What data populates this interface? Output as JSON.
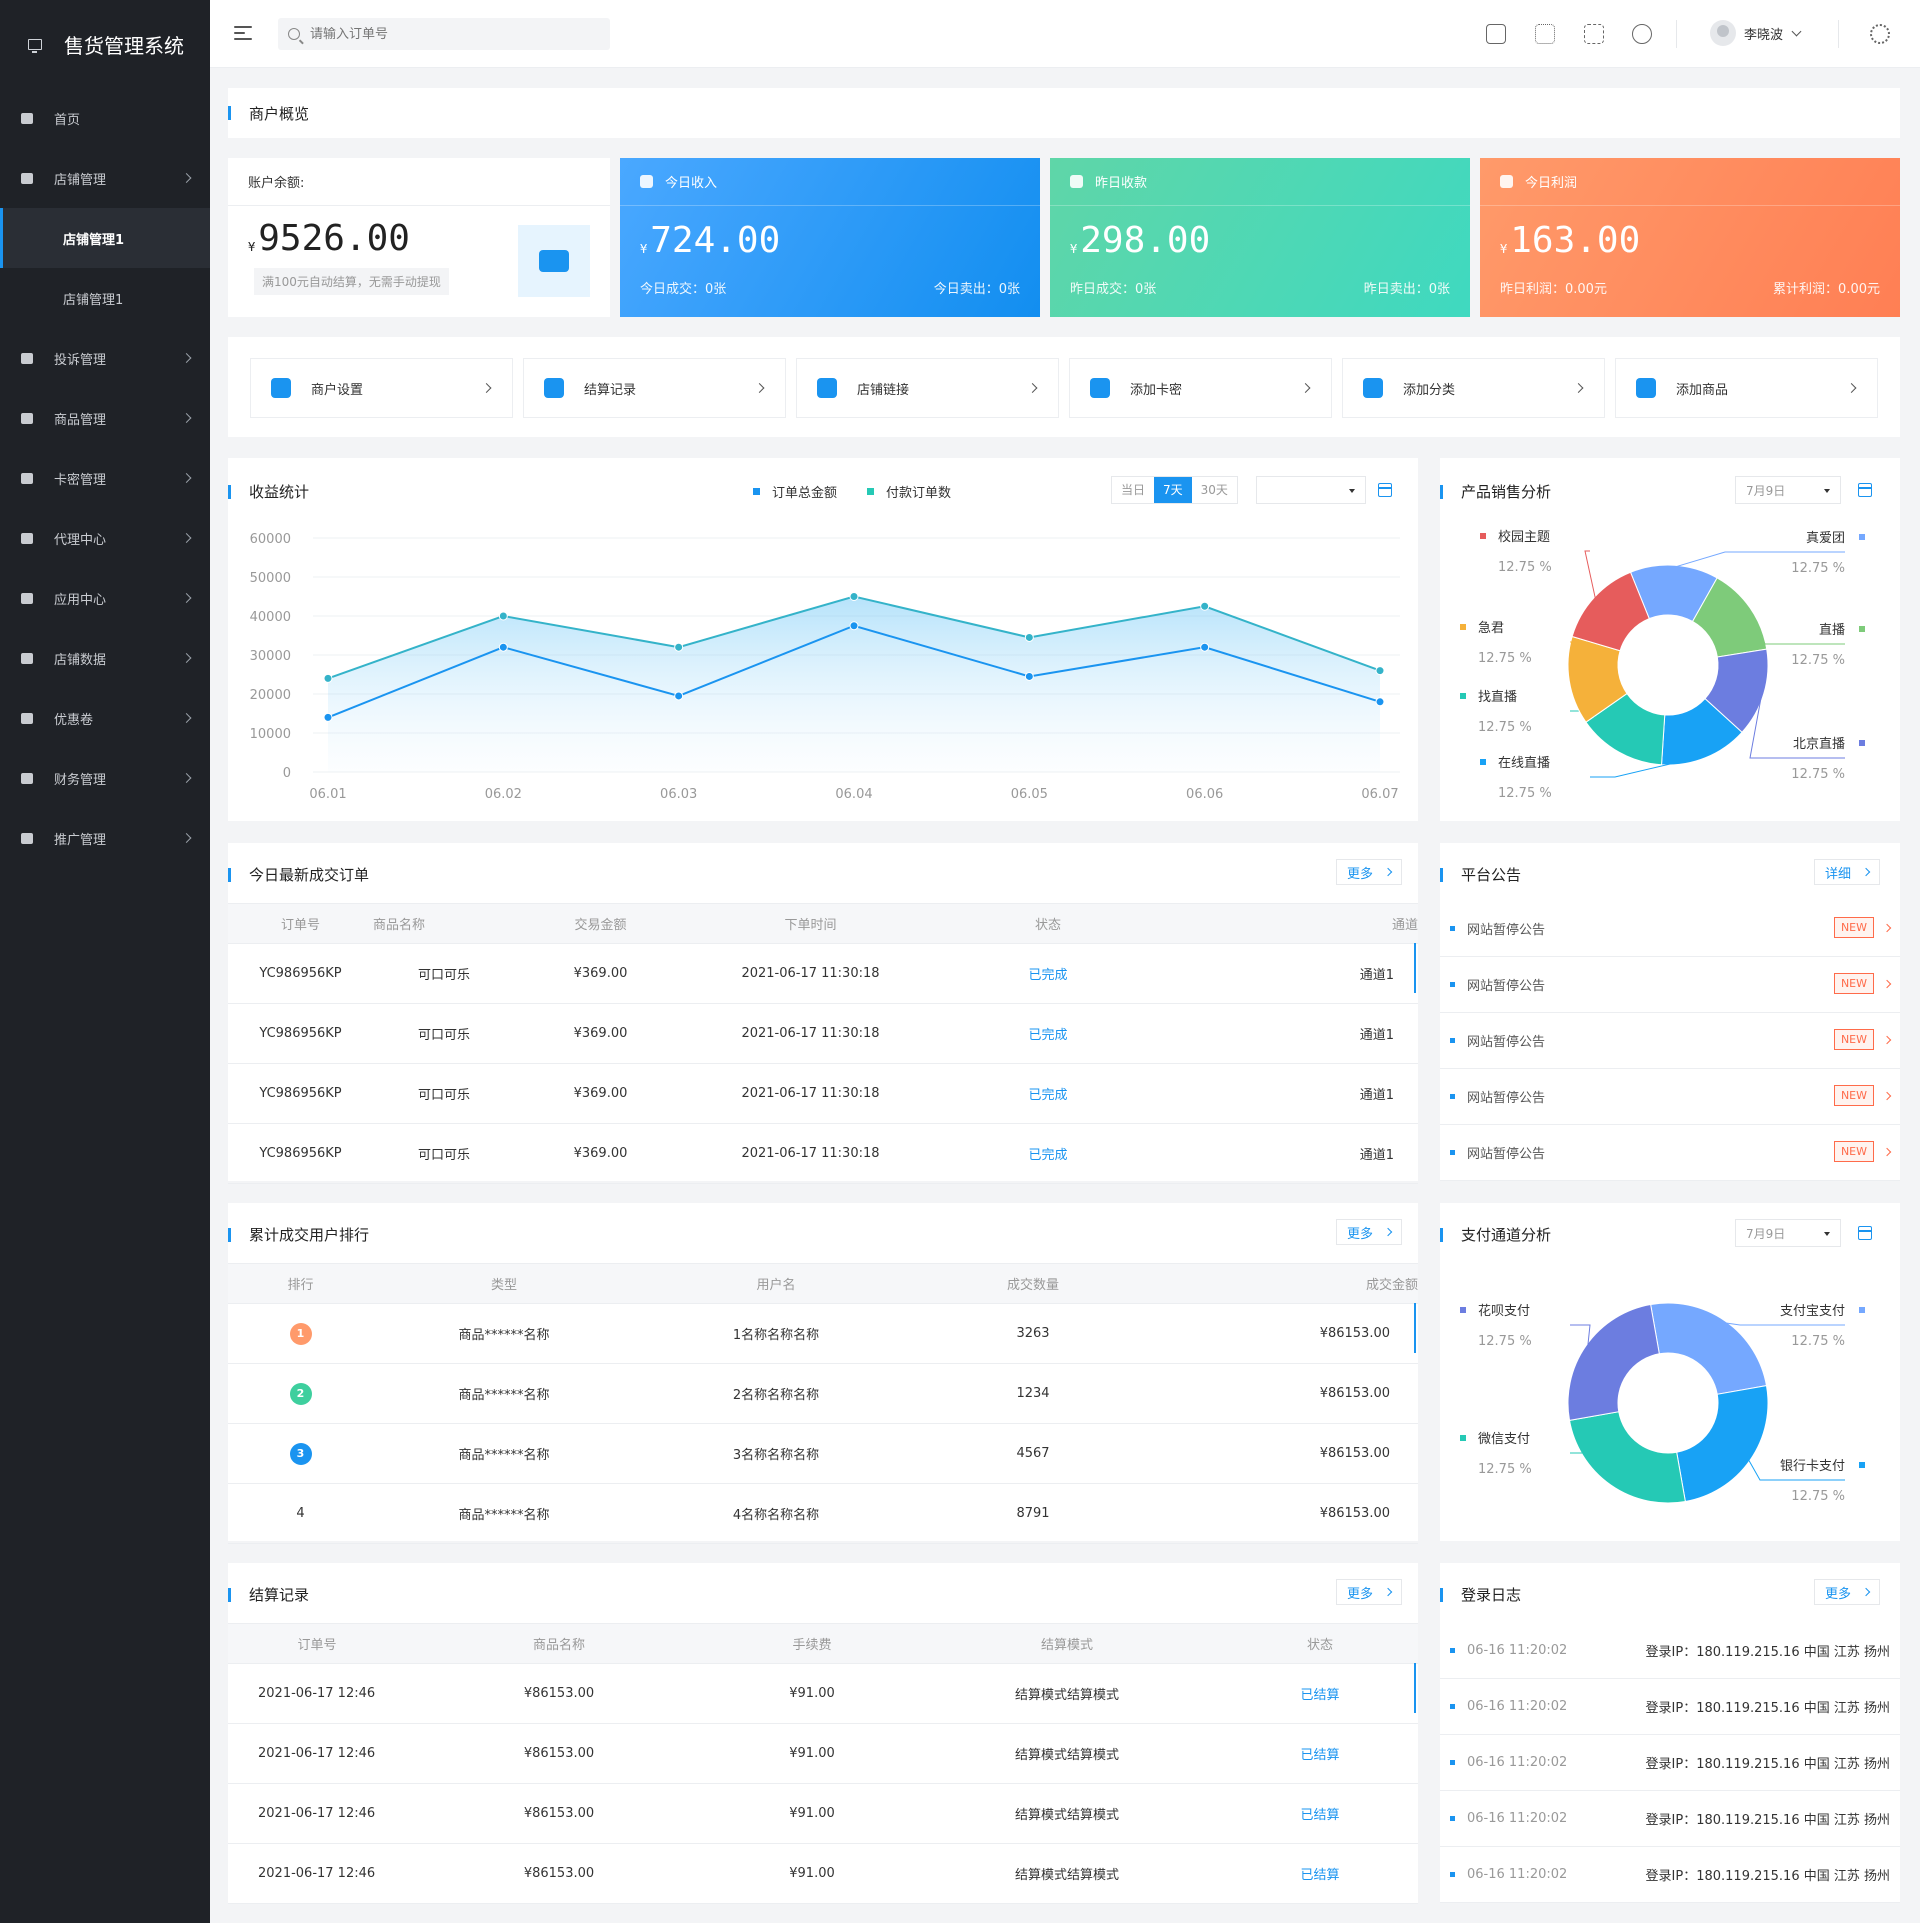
{
  "app": {
    "title": "售货管理系统"
  },
  "sidebar": {
    "items": [
      {
        "label": "首页",
        "icon": "home-icon",
        "has_arrow": false
      },
      {
        "label": "店铺管理",
        "icon": "store-icon",
        "has_arrow": true
      },
      {
        "label": "店铺管理1",
        "sub": true,
        "active": true
      },
      {
        "label": "店铺管理1",
        "sub": true,
        "active": false
      },
      {
        "label": "投诉管理",
        "icon": "chat-icon",
        "has_arrow": true
      },
      {
        "label": "商品管理",
        "icon": "bag-icon",
        "has_arrow": true
      },
      {
        "label": "卡密管理",
        "icon": "card-icon",
        "has_arrow": true
      },
      {
        "label": "代理中心",
        "icon": "user-icon",
        "has_arrow": true
      },
      {
        "label": "应用中心",
        "icon": "apps-icon",
        "has_arrow": true
      },
      {
        "label": "店铺数据",
        "icon": "doc-icon",
        "has_arrow": true
      },
      {
        "label": "优惠卷",
        "icon": "coupon-icon",
        "has_arrow": true
      },
      {
        "label": "财务管理",
        "icon": "wallet-icon",
        "has_arrow": true
      },
      {
        "label": "推广管理",
        "icon": "share-icon",
        "has_arrow": true
      }
    ]
  },
  "topbar": {
    "search_placeholder": "请输入订单号",
    "username": "李晓波"
  },
  "overview": {
    "title": "商户概览",
    "balance_label": "账户余额:",
    "balance_currency": "¥",
    "balance_value": "9526.00",
    "balance_note": "满100元自动结算，无需手动提现",
    "cards": [
      {
        "title": "今日收入",
        "currency": "¥",
        "value": "724.00",
        "left": "今日成交：0张",
        "right": "今日卖出：0张",
        "color": "#1a94f0"
      },
      {
        "title": "昨日收款",
        "currency": "¥",
        "value": "298.00",
        "left": "昨日成交：0张",
        "right": "昨日卖出：0张",
        "color": "#3ecf9e"
      },
      {
        "title": "今日利润",
        "currency": "¥",
        "value": "163.00",
        "left": "昨日利润：0.00元",
        "right": "累计利润：0.00元",
        "color": "#ff8a5c"
      }
    ]
  },
  "quick_actions": [
    {
      "label": "商户设置",
      "icon": "gear-icon"
    },
    {
      "label": "结算记录",
      "icon": "clipboard-icon"
    },
    {
      "label": "店铺链接",
      "icon": "shop-link-icon"
    },
    {
      "label": "添加卡密",
      "icon": "add-card-icon"
    },
    {
      "label": "添加分类",
      "icon": "category-icon"
    },
    {
      "label": "添加商品",
      "icon": "add-product-icon"
    }
  ],
  "revenue": {
    "title": "收益统计",
    "legend": [
      "订单总金额",
      "付款订单数"
    ],
    "ranges": [
      "当日",
      "7天",
      "30天"
    ],
    "active_range": "7天"
  },
  "chart_data": [
    {
      "type": "area",
      "title": "收益统计",
      "categories": [
        "06.01",
        "06.02",
        "06.03",
        "06.04",
        "06.05",
        "06.06",
        "06.07"
      ],
      "series": [
        {
          "name": "订单总金额",
          "values": [
            14000,
            32000,
            19500,
            37500,
            24500,
            32000,
            18000
          ],
          "color": "#1a94f0"
        },
        {
          "name": "付款订单数",
          "values": [
            24000,
            40000,
            32000,
            45000,
            34500,
            42500,
            26000
          ],
          "color": "#34b3c9"
        }
      ],
      "ylim": [
        0,
        60000
      ],
      "yticks": [
        0,
        10000,
        20000,
        30000,
        40000,
        50000,
        60000
      ],
      "grid": true,
      "legend_position": "top"
    },
    {
      "type": "pie",
      "title": "产品销售分析",
      "date": "7月9日",
      "slices": [
        {
          "name": "真爱团",
          "value": 12.75,
          "color": "#75a8ff"
        },
        {
          "name": "直播",
          "value": 12.75,
          "color": "#7ecb7a"
        },
        {
          "name": "北京直播",
          "value": 12.75,
          "color": "#6c7de0"
        },
        {
          "name": "在线直播",
          "value": 12.75,
          "color": "#18a2f5"
        },
        {
          "name": "找直播",
          "value": 12.75,
          "color": "#25c9b5"
        },
        {
          "name": "急君",
          "value": 12.75,
          "color": "#f5b13a"
        },
        {
          "name": "校园主题",
          "value": 12.75,
          "color": "#e65c5c"
        }
      ],
      "unit": "%"
    },
    {
      "type": "pie",
      "title": "支付通道分析",
      "date": "7月9日",
      "slices": [
        {
          "name": "支付宝支付",
          "value": 12.75,
          "color": "#75a8ff"
        },
        {
          "name": "银行卡支付",
          "value": 12.75,
          "color": "#18a2f5"
        },
        {
          "name": "微信支付",
          "value": 12.75,
          "color": "#25c9b5"
        },
        {
          "name": "花呗支付",
          "value": 12.75,
          "color": "#6c7de0"
        }
      ],
      "unit": "%"
    }
  ],
  "orders": {
    "title": "今日最新成交订单",
    "more": "更多",
    "columns": [
      "订单号",
      "商品名称",
      "交易金额",
      "下单时间",
      "状态",
      "通道"
    ],
    "rows": [
      [
        "YC986956KP",
        "可口可乐",
        "¥369.00",
        "2021-06-17 11:30:18",
        "已完成",
        "通道1"
      ],
      [
        "YC986956KP",
        "可口可乐",
        "¥369.00",
        "2021-06-17 11:30:18",
        "已完成",
        "通道1"
      ],
      [
        "YC986956KP",
        "可口可乐",
        "¥369.00",
        "2021-06-17 11:30:18",
        "已完成",
        "通道1"
      ],
      [
        "YC986956KP",
        "可口可乐",
        "¥369.00",
        "2021-06-17 11:30:18",
        "已完成",
        "通道1"
      ]
    ]
  },
  "notices": {
    "title": "平台公告",
    "more": "详细",
    "badge": "NEW",
    "items": [
      "网站暂停公告",
      "网站暂停公告",
      "网站暂停公告",
      "网站暂停公告",
      "网站暂停公告"
    ]
  },
  "ranking": {
    "title": "累计成交用户排行",
    "more": "更多",
    "columns": [
      "排行",
      "类型",
      "用户名",
      "成交数量",
      "成交金额"
    ],
    "rows": [
      [
        "1",
        "商品******名称",
        "1名称名称名称",
        "3263",
        "¥86153.00"
      ],
      [
        "2",
        "商品******名称",
        "2名称名称名称",
        "1234",
        "¥86153.00"
      ],
      [
        "3",
        "商品******名称",
        "3名称名称名称",
        "4567",
        "¥86153.00"
      ],
      [
        "4",
        "商品******名称",
        "4名称名称名称",
        "8791",
        "¥86153.00"
      ]
    ],
    "rank_colors": [
      "#ff9a6b",
      "#3ecf9e",
      "#1a94f0"
    ]
  },
  "settlement": {
    "title": "结算记录",
    "more": "更多",
    "columns": [
      "订单号",
      "商品名称",
      "手续费",
      "结算模式",
      "状态"
    ],
    "rows": [
      [
        "2021-06-17 12:46",
        "¥86153.00",
        "¥91.00",
        "结算模式结算模式",
        "已结算"
      ],
      [
        "2021-06-17 12:46",
        "¥86153.00",
        "¥91.00",
        "结算模式结算模式",
        "已结算"
      ],
      [
        "2021-06-17 12:46",
        "¥86153.00",
        "¥91.00",
        "结算模式结算模式",
        "已结算"
      ],
      [
        "2021-06-17 12:46",
        "¥86153.00",
        "¥91.00",
        "结算模式结算模式",
        "已结算"
      ]
    ]
  },
  "login_log": {
    "title": "登录日志",
    "more": "更多",
    "items": [
      {
        "time": "06-16 11:20:02",
        "ip": "登录IP：180.119.215.16 中国 江苏 扬州"
      },
      {
        "time": "06-16 11:20:02",
        "ip": "登录IP：180.119.215.16 中国 江苏 扬州"
      },
      {
        "time": "06-16 11:20:02",
        "ip": "登录IP：180.119.215.16 中国 江苏 扬州"
      },
      {
        "time": "06-16 11:20:02",
        "ip": "登录IP：180.119.215.16 中国 江苏 扬州"
      },
      {
        "time": "06-16 11:20:02",
        "ip": "登录IP：180.119.215.16 中国 江苏 扬州"
      }
    ]
  }
}
